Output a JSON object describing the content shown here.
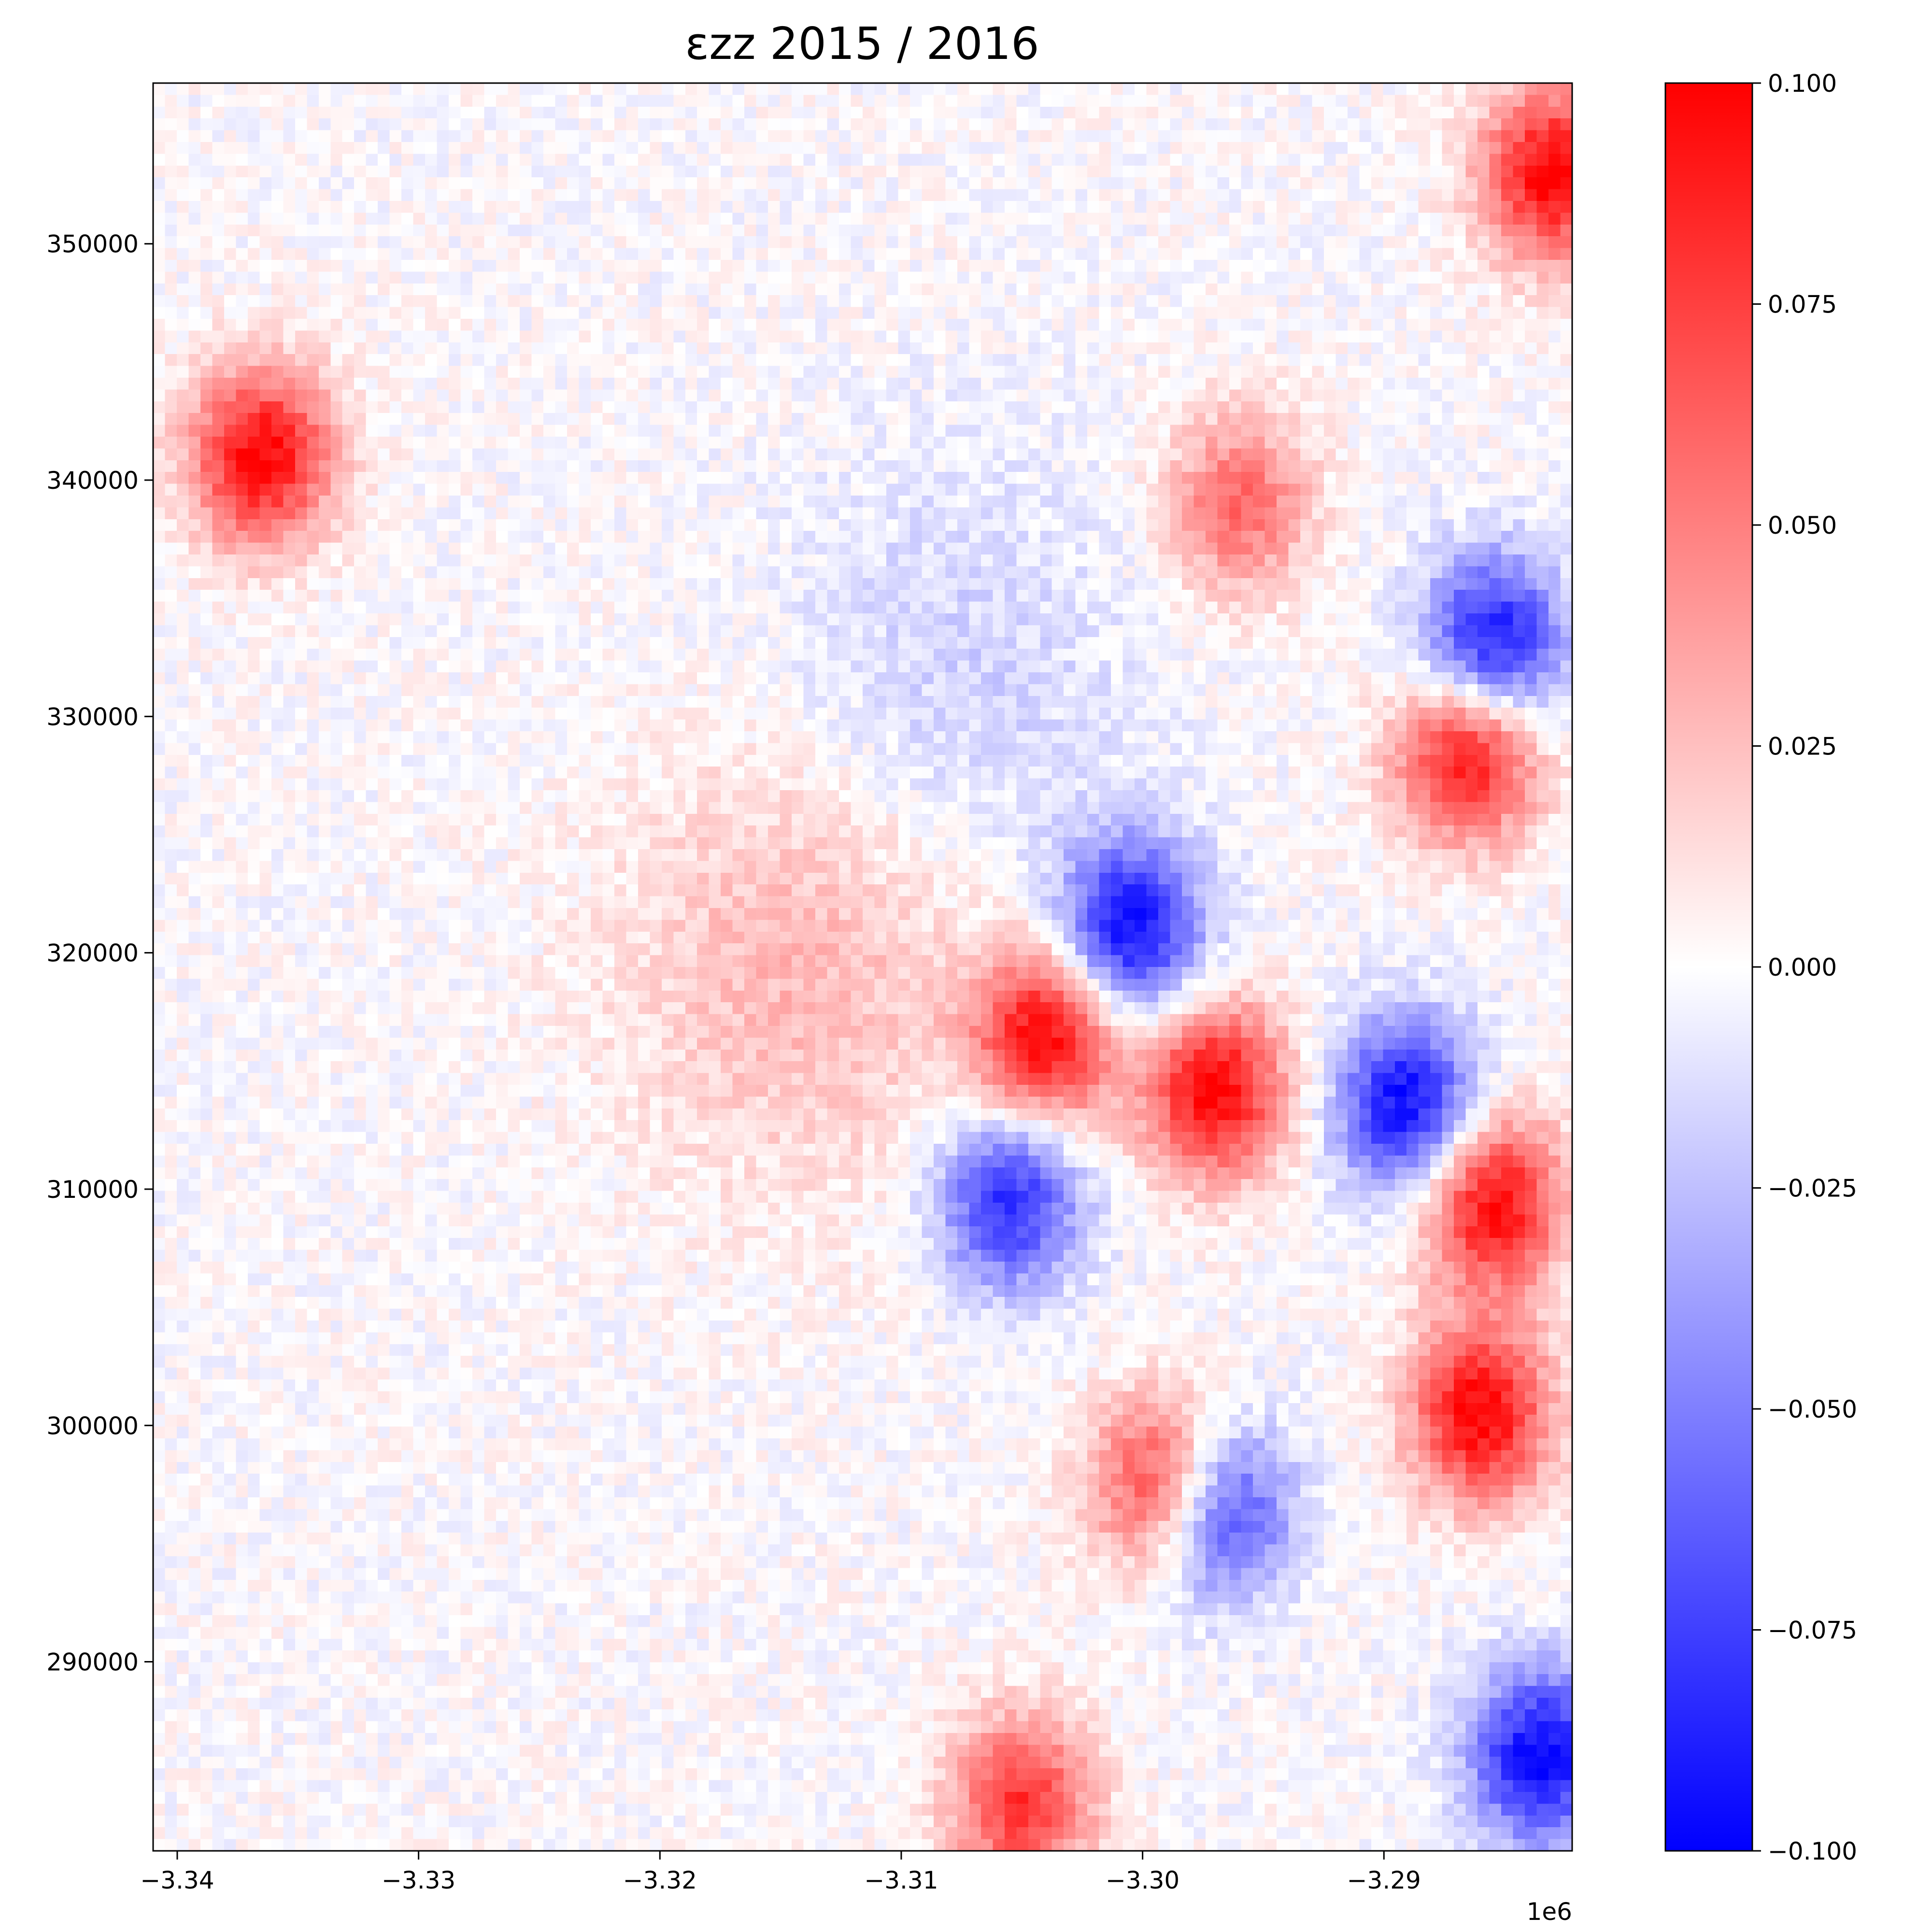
{
  "chart_data": {
    "type": "heatmap",
    "title": "εzz 2015 / 2016",
    "x_ticks": [
      -3.34,
      -3.33,
      -3.32,
      -3.31,
      -3.3,
      -3.29
    ],
    "x_tick_labels": [
      "−3.34",
      "−3.33",
      "−3.32",
      "−3.31",
      "−3.30",
      "−3.29"
    ],
    "x_offset_label": "1e6",
    "xlim": [
      -3.341,
      -3.2822
    ],
    "y_ticks": [
      290000,
      300000,
      310000,
      320000,
      330000,
      340000,
      350000
    ],
    "y_tick_labels": [
      "290000",
      "300000",
      "310000",
      "320000",
      "330000",
      "340000",
      "350000"
    ],
    "ylim": [
      282000,
      356800
    ],
    "colorbar": {
      "colormap": "bwr",
      "vmin": -0.1,
      "vmax": 0.1,
      "ticks": [
        -0.1,
        -0.075,
        -0.05,
        -0.025,
        0.0,
        0.025,
        0.05,
        0.075,
        0.1
      ],
      "tick_labels": [
        "−0.100",
        "−0.075",
        "−0.050",
        "−0.025",
        "0.000",
        "0.025",
        "0.050",
        "0.075",
        "0.100"
      ],
      "colors": {
        "low": "#0000ff",
        "mid": "#ffffff",
        "high": "#ff0000"
      }
    },
    "features": [
      {
        "name": "central-red-lobe",
        "x": -3.304,
        "y": 316500,
        "value": 0.1
      },
      {
        "name": "central-blue-band",
        "x": -3.3005,
        "y": 321000,
        "value": -0.1
      },
      {
        "name": "lower-blue-arm",
        "x": -3.3055,
        "y": 309500,
        "value": -0.085
      },
      {
        "name": "diffuse-red-west",
        "x": -3.314,
        "y": 320000,
        "value": 0.03
      },
      {
        "name": "diffuse-blue-north",
        "x": -3.308,
        "y": 331000,
        "value": -0.02
      },
      {
        "name": "upper-red-ridge",
        "x": -3.296,
        "y": 339000,
        "value": 0.06
      },
      {
        "name": "east-red-streak",
        "x": -3.2865,
        "y": 328500,
        "value": 0.1
      },
      {
        "name": "east-blue-streak",
        "x": -3.2855,
        "y": 333000,
        "value": -0.1
      },
      {
        "name": "east-red-band-lower",
        "x": -3.2855,
        "y": 309500,
        "value": 0.1
      },
      {
        "name": "east-blue-band-lower",
        "x": -3.289,
        "y": 313500,
        "value": -0.1
      },
      {
        "name": "red-band-middle",
        "x": -3.297,
        "y": 314200,
        "value": 0.1
      },
      {
        "name": "blue-chain-south",
        "x": -3.297,
        "y": 296500,
        "value": -0.1
      },
      {
        "name": "red-chain-south",
        "x": -3.299,
        "y": 297500,
        "value": 0.1
      },
      {
        "name": "red-blue-south-east",
        "x": -3.286,
        "y": 300500,
        "value": 0.1
      },
      {
        "name": "bottom-noise",
        "x": -3.305,
        "y": 284000,
        "value": 0.08
      },
      {
        "name": "corner-blue-south-east",
        "x": -3.2835,
        "y": 286000,
        "value": -0.1
      },
      {
        "name": "corner-red-north-east",
        "x": -3.283,
        "y": 353000,
        "value": 0.1
      },
      {
        "name": "west-edge-red-dots",
        "x": -3.3365,
        "y": 341000,
        "value": 0.1
      }
    ]
  }
}
